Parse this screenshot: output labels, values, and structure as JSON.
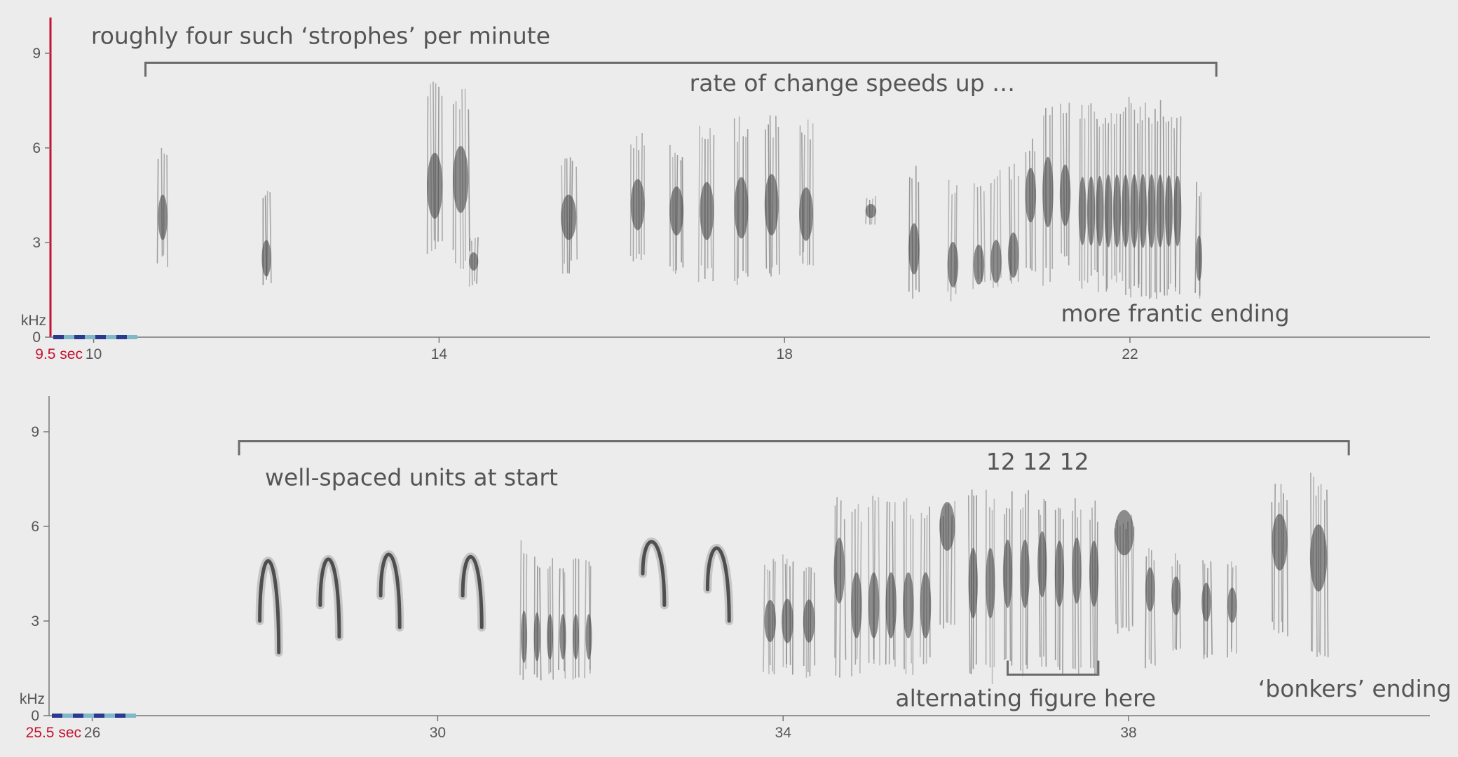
{
  "panels": [
    {
      "id": "top",
      "start_label": "9.5 sec",
      "y_unit": "kHz",
      "time_range": [
        9.5,
        25.5
      ],
      "freq_range": [
        0,
        10
      ],
      "y_ticks": [
        {
          "value": 0,
          "label": "0"
        },
        {
          "value": 3,
          "label": "3"
        },
        {
          "value": 6,
          "label": "6"
        },
        {
          "value": 9,
          "label": "9"
        }
      ],
      "x_ticks": [
        {
          "value": 10,
          "label": "10"
        },
        {
          "value": 14,
          "label": "14"
        },
        {
          "value": 18,
          "label": "18"
        },
        {
          "value": 22,
          "label": "22"
        }
      ],
      "brackets": [
        {
          "from": 10.6,
          "to": 23.0,
          "freq": 8.7,
          "dir": "down"
        }
      ],
      "annotations": [
        {
          "text": "roughly four such ‘strophes’ per minute",
          "t": 9.97,
          "freq": 9.3
        },
        {
          "text": "rate of change speeds up …",
          "t": 16.9,
          "freq": 7.8
        },
        {
          "text": "more frantic ending",
          "t": 21.2,
          "freq": 0.5
        }
      ],
      "units": [
        {
          "t": 10.8,
          "w": 0.12,
          "lo": 2.2,
          "hi": 6.2,
          "core": 3.8
        },
        {
          "t": 12.0,
          "w": 0.12,
          "lo": 1.6,
          "hi": 4.8,
          "core": 2.5
        },
        {
          "t": 13.95,
          "w": 0.2,
          "lo": 2.6,
          "hi": 8.4,
          "core": 4.8
        },
        {
          "t": 14.25,
          "w": 0.2,
          "lo": 2.1,
          "hi": 8.0,
          "core": 5.0
        },
        {
          "t": 14.4,
          "w": 0.12,
          "lo": 1.6,
          "hi": 3.2,
          "core": 2.4
        },
        {
          "t": 15.5,
          "w": 0.2,
          "lo": 2.0,
          "hi": 6.0,
          "core": 3.8
        },
        {
          "t": 16.3,
          "w": 0.18,
          "lo": 2.1,
          "hi": 6.6,
          "core": 4.2
        },
        {
          "t": 16.75,
          "w": 0.18,
          "lo": 1.9,
          "hi": 6.2,
          "core": 4.0
        },
        {
          "t": 17.1,
          "w": 0.18,
          "lo": 1.7,
          "hi": 6.8,
          "core": 4.0
        },
        {
          "t": 17.5,
          "w": 0.18,
          "lo": 1.6,
          "hi": 7.0,
          "core": 4.1
        },
        {
          "t": 17.85,
          "w": 0.18,
          "lo": 1.7,
          "hi": 7.1,
          "core": 4.2
        },
        {
          "t": 18.25,
          "w": 0.18,
          "lo": 2.2,
          "hi": 6.9,
          "core": 3.9
        },
        {
          "t": 19.0,
          "w": 0.14,
          "lo": 3.5,
          "hi": 4.5,
          "core": 4.0
        },
        {
          "t": 19.5,
          "w": 0.14,
          "lo": 1.0,
          "hi": 5.5,
          "core": 2.8
        },
        {
          "t": 19.95,
          "w": 0.14,
          "lo": 1.1,
          "hi": 5.1,
          "core": 2.3
        },
        {
          "t": 20.25,
          "w": 0.14,
          "lo": 1.5,
          "hi": 5.0,
          "core": 2.3
        },
        {
          "t": 20.45,
          "w": 0.14,
          "lo": 1.5,
          "hi": 5.3,
          "core": 2.4
        },
        {
          "t": 20.65,
          "w": 0.14,
          "lo": 1.6,
          "hi": 5.6,
          "core": 2.6
        },
        {
          "t": 20.85,
          "w": 0.14,
          "lo": 1.7,
          "hi": 6.5,
          "core": 4.5
        },
        {
          "t": 21.05,
          "w": 0.14,
          "lo": 1.6,
          "hi": 7.8,
          "core": 4.6
        },
        {
          "t": 21.25,
          "w": 0.14,
          "lo": 2.2,
          "hi": 7.6,
          "core": 4.5
        },
        {
          "t": 21.45,
          "w": 0.1,
          "lo": 1.5,
          "hi": 7.5,
          "core": 4.0
        },
        {
          "t": 21.55,
          "w": 0.1,
          "lo": 1.5,
          "hi": 7.6,
          "core": 4.0
        },
        {
          "t": 21.65,
          "w": 0.1,
          "lo": 1.4,
          "hi": 7.6,
          "core": 4.0
        },
        {
          "t": 21.75,
          "w": 0.1,
          "lo": 1.3,
          "hi": 7.7,
          "core": 4.0
        },
        {
          "t": 21.85,
          "w": 0.1,
          "lo": 1.3,
          "hi": 7.7,
          "core": 4.0
        },
        {
          "t": 21.95,
          "w": 0.1,
          "lo": 1.3,
          "hi": 7.7,
          "core": 4.0
        },
        {
          "t": 22.05,
          "w": 0.1,
          "lo": 1.2,
          "hi": 7.7,
          "core": 4.0
        },
        {
          "t": 22.15,
          "w": 0.1,
          "lo": 1.2,
          "hi": 7.7,
          "core": 4.0
        },
        {
          "t": 22.25,
          "w": 0.1,
          "lo": 1.2,
          "hi": 7.7,
          "core": 4.0
        },
        {
          "t": 22.35,
          "w": 0.1,
          "lo": 1.2,
          "hi": 7.6,
          "core": 4.0
        },
        {
          "t": 22.45,
          "w": 0.1,
          "lo": 1.2,
          "hi": 7.5,
          "core": 4.0
        },
        {
          "t": 22.55,
          "w": 0.1,
          "lo": 1.2,
          "hi": 7.4,
          "core": 4.0
        },
        {
          "t": 22.8,
          "w": 0.08,
          "lo": 1.0,
          "hi": 5.0,
          "core": 2.5
        }
      ]
    },
    {
      "id": "bottom",
      "start_label": "25.5 sec",
      "y_unit": "kHz",
      "time_range": [
        25.5,
        41.5
      ],
      "freq_range": [
        0,
        10
      ],
      "y_ticks": [
        {
          "value": 0,
          "label": "0"
        },
        {
          "value": 3,
          "label": "3"
        },
        {
          "value": 6,
          "label": "6"
        },
        {
          "value": 9,
          "label": "9"
        }
      ],
      "x_ticks": [
        {
          "value": 26,
          "label": "26"
        },
        {
          "value": 30,
          "label": "30"
        },
        {
          "value": 34,
          "label": "34"
        },
        {
          "value": 38,
          "label": "38"
        }
      ],
      "brackets": [
        {
          "from": 27.7,
          "to": 40.55,
          "freq": 8.7,
          "dir": "down"
        },
        {
          "from": 36.6,
          "to": 37.65,
          "freq": 1.3,
          "dir": "up"
        }
      ],
      "annotations": [
        {
          "text": "well-spaced units at start",
          "t": 28.0,
          "freq": 7.3
        },
        {
          "text": "12 12 12",
          "t": 36.35,
          "freq": 7.8
        },
        {
          "text": "alternating figure here",
          "t": 35.3,
          "freq": 0.3
        },
        {
          "text": "‘bonkers’ ending",
          "t": 39.5,
          "freq": 0.6
        }
      ],
      "units": [
        {
          "t": 28.05,
          "w": 0.22,
          "lo": 2.0,
          "hi": 5.6,
          "core": 5.1,
          "shape": "arch"
        },
        {
          "t": 28.75,
          "w": 0.22,
          "lo": 2.5,
          "hi": 5.5,
          "core": 5.1,
          "shape": "arch"
        },
        {
          "t": 29.45,
          "w": 0.22,
          "lo": 2.8,
          "hi": 5.6,
          "core": 5.2,
          "shape": "arch"
        },
        {
          "t": 30.4,
          "w": 0.22,
          "lo": 2.8,
          "hi": 5.5,
          "core": 5.1,
          "shape": "arch"
        },
        {
          "t": 31.0,
          "w": 0.08,
          "lo": 1.0,
          "hi": 5.6,
          "core": 2.5
        },
        {
          "t": 31.15,
          "w": 0.08,
          "lo": 1.0,
          "hi": 5.3,
          "core": 2.5
        },
        {
          "t": 31.3,
          "w": 0.08,
          "lo": 1.0,
          "hi": 5.0,
          "core": 2.5
        },
        {
          "t": 31.45,
          "w": 0.08,
          "lo": 1.0,
          "hi": 5.0,
          "core": 2.5
        },
        {
          "t": 31.6,
          "w": 0.08,
          "lo": 1.0,
          "hi": 5.0,
          "core": 2.5
        },
        {
          "t": 31.75,
          "w": 0.08,
          "lo": 1.0,
          "hi": 5.0,
          "core": 2.5
        },
        {
          "t": 32.5,
          "w": 0.25,
          "lo": 3.5,
          "hi": 5.9,
          "core": 5.4,
          "shape": "arch"
        },
        {
          "t": 33.25,
          "w": 0.25,
          "lo": 3.0,
          "hi": 5.8,
          "core": 5.4,
          "shape": "arch"
        },
        {
          "t": 33.85,
          "w": 0.15,
          "lo": 1.3,
          "hi": 5.0,
          "core": 3.0
        },
        {
          "t": 34.05,
          "w": 0.15,
          "lo": 1.3,
          "hi": 5.2,
          "core": 3.0
        },
        {
          "t": 34.3,
          "w": 0.15,
          "lo": 1.2,
          "hi": 5.0,
          "core": 3.0
        },
        {
          "t": 34.65,
          "w": 0.14,
          "lo": 1.2,
          "hi": 7.0,
          "core": 4.6
        },
        {
          "t": 34.85,
          "w": 0.14,
          "lo": 1.2,
          "hi": 7.0,
          "core": 3.5
        },
        {
          "t": 35.05,
          "w": 0.14,
          "lo": 1.2,
          "hi": 7.0,
          "core": 3.5
        },
        {
          "t": 35.25,
          "w": 0.14,
          "lo": 1.2,
          "hi": 7.0,
          "core": 3.5
        },
        {
          "t": 35.45,
          "w": 0.14,
          "lo": 1.2,
          "hi": 7.0,
          "core": 3.5
        },
        {
          "t": 35.65,
          "w": 0.14,
          "lo": 1.2,
          "hi": 7.0,
          "core": 3.5
        },
        {
          "t": 35.9,
          "w": 0.2,
          "lo": 2.5,
          "hi": 6.8,
          "core": 6.0
        },
        {
          "t": 36.2,
          "w": 0.12,
          "lo": 1.0,
          "hi": 7.2,
          "core": 4.2
        },
        {
          "t": 36.4,
          "w": 0.12,
          "lo": 1.0,
          "hi": 7.2,
          "core": 4.2
        },
        {
          "t": 36.6,
          "w": 0.12,
          "lo": 1.2,
          "hi": 7.2,
          "core": 4.5
        },
        {
          "t": 36.8,
          "w": 0.12,
          "lo": 1.2,
          "hi": 7.2,
          "core": 4.5
        },
        {
          "t": 37.0,
          "w": 0.12,
          "lo": 1.2,
          "hi": 7.0,
          "core": 4.8
        },
        {
          "t": 37.2,
          "w": 0.12,
          "lo": 1.2,
          "hi": 7.0,
          "core": 4.5
        },
        {
          "t": 37.4,
          "w": 0.12,
          "lo": 1.2,
          "hi": 7.0,
          "core": 4.6
        },
        {
          "t": 37.6,
          "w": 0.12,
          "lo": 1.2,
          "hi": 7.0,
          "core": 4.5
        },
        {
          "t": 37.95,
          "w": 0.25,
          "lo": 2.5,
          "hi": 6.5,
          "core": 5.8
        },
        {
          "t": 38.25,
          "w": 0.12,
          "lo": 1.5,
          "hi": 5.4,
          "core": 4.0
        },
        {
          "t": 38.55,
          "w": 0.12,
          "lo": 1.8,
          "hi": 5.2,
          "core": 3.8
        },
        {
          "t": 38.9,
          "w": 0.12,
          "lo": 1.6,
          "hi": 5.0,
          "core": 3.6
        },
        {
          "t": 39.2,
          "w": 0.12,
          "lo": 1.8,
          "hi": 4.9,
          "core": 3.5
        },
        {
          "t": 39.75,
          "w": 0.2,
          "lo": 2.5,
          "hi": 7.5,
          "core": 5.5
        },
        {
          "t": 40.2,
          "w": 0.22,
          "lo": 1.8,
          "hi": 7.7,
          "core": 5.0
        }
      ]
    }
  ]
}
